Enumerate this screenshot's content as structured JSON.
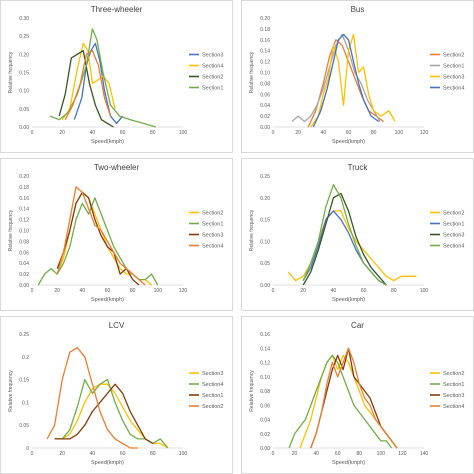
{
  "chart_data": [
    {
      "type": "line",
      "title": "Three-wheeler",
      "xlabel": "Speed(kmph)",
      "ylabel": "Relative frequency",
      "xlim": [
        0,
        100
      ],
      "xticks": [
        0,
        20,
        40,
        60,
        80,
        100
      ],
      "ylim": [
        0,
        0.3
      ],
      "yticks": [
        0,
        0.05,
        0.1,
        0.15,
        0.2,
        0.25,
        0.3
      ],
      "ytick_labels": [
        "0.00",
        "0.05",
        "0.10",
        "0.15",
        "0.20",
        "0.25",
        "0.30"
      ],
      "legend": "right",
      "series": [
        {
          "name": "Section3",
          "color": "#4472c4",
          "x": [
            28,
            33,
            36,
            39,
            42,
            45,
            48,
            52,
            56,
            60
          ],
          "y": [
            0.02,
            0.08,
            0.17,
            0.21,
            0.23,
            0.18,
            0.1,
            0.03,
            0.01,
            0.03
          ]
        },
        {
          "name": "Section4",
          "color": "#ffc000",
          "x": [
            20,
            25,
            30,
            34,
            37,
            40,
            44,
            47,
            51,
            55
          ],
          "y": [
            0.02,
            0.05,
            0.16,
            0.23,
            0.21,
            0.12,
            0.13,
            0.14,
            0.12,
            0.05
          ]
        },
        {
          "name": "Section2",
          "color": "#375623",
          "x": [
            18,
            22,
            26,
            30,
            34,
            38,
            42,
            46,
            50,
            54
          ],
          "y": [
            0.03,
            0.09,
            0.19,
            0.2,
            0.21,
            0.12,
            0.06,
            0.02,
            0.01,
            0.0
          ]
        },
        {
          "name": "Section1",
          "color": "#70ad47",
          "x": [
            12,
            18,
            24,
            30,
            36,
            40,
            43,
            47,
            52,
            58,
            65,
            74,
            82
          ],
          "y": [
            0.03,
            0.02,
            0.04,
            0.09,
            0.17,
            0.27,
            0.24,
            0.15,
            0.06,
            0.03,
            0.02,
            0.01,
            0.0
          ]
        },
        {
          "name": "",
          "color": "#ed7d31",
          "x": [
            22,
            27,
            32,
            36,
            40,
            44,
            48,
            52
          ],
          "y": [
            0.02,
            0.06,
            0.12,
            0.2,
            0.21,
            0.17,
            0.08,
            0.03
          ]
        }
      ]
    },
    {
      "type": "line",
      "title": "Bus",
      "xlabel": "Speed(kmph)",
      "ylabel": "Relative frequency",
      "xlim": [
        0,
        120
      ],
      "xticks": [
        0,
        20,
        40,
        60,
        80,
        100,
        120
      ],
      "ylim": [
        0,
        0.2
      ],
      "yticks": [
        0,
        0.02,
        0.04,
        0.06,
        0.08,
        0.1,
        0.12,
        0.14,
        0.16,
        0.18,
        0.2
      ],
      "ytick_labels": [
        "0.00",
        "0.02",
        "0.04",
        "0.06",
        "0.08",
        "0.10",
        "0.12",
        "0.14",
        "0.16",
        "0.18",
        "0.20"
      ],
      "legend": "right",
      "series": [
        {
          "name": "Section2",
          "color": "#ed7d31",
          "x": [
            28,
            34,
            40,
            45,
            50,
            55,
            60,
            65,
            70,
            76,
            82,
            88
          ],
          "y": [
            0.0,
            0.03,
            0.08,
            0.13,
            0.16,
            0.15,
            0.12,
            0.09,
            0.06,
            0.03,
            0.02,
            0.01
          ]
        },
        {
          "name": "Section1",
          "color": "#a5a5a5",
          "x": [
            15,
            20,
            25,
            30,
            35,
            40,
            45,
            50,
            55,
            60,
            65,
            70,
            75,
            80,
            85
          ],
          "y": [
            0.01,
            0.02,
            0.01,
            0.02,
            0.04,
            0.07,
            0.11,
            0.15,
            0.17,
            0.14,
            0.1,
            0.08,
            0.05,
            0.03,
            0.01
          ]
        },
        {
          "name": "Section3",
          "color": "#ffc000",
          "x": [
            30,
            36,
            40,
            44,
            48,
            52,
            56,
            60,
            64,
            68,
            72,
            76,
            80,
            86,
            92,
            97
          ],
          "y": [
            0.0,
            0.02,
            0.06,
            0.09,
            0.15,
            0.12,
            0.04,
            0.14,
            0.17,
            0.1,
            0.11,
            0.06,
            0.03,
            0.02,
            0.03,
            0.01
          ]
        },
        {
          "name": "Section4",
          "color": "#4472c4",
          "x": [
            32,
            38,
            43,
            48,
            52,
            56,
            60,
            64,
            68,
            72,
            78,
            84
          ],
          "y": [
            0.0,
            0.03,
            0.07,
            0.12,
            0.16,
            0.17,
            0.16,
            0.12,
            0.08,
            0.05,
            0.02,
            0.01
          ]
        }
      ]
    },
    {
      "type": "line",
      "title": "Two-wheeler",
      "xlabel": "Speed(kmph)",
      "ylabel": "Relative frequency",
      "xlim": [
        0,
        120
      ],
      "xticks": [
        0,
        20,
        40,
        60,
        80,
        100,
        120
      ],
      "ylim": [
        0,
        0.2
      ],
      "yticks": [
        0,
        0.02,
        0.04,
        0.06,
        0.08,
        0.1,
        0.12,
        0.14,
        0.16,
        0.18,
        0.2
      ],
      "ytick_labels": [
        "0.00",
        "0.02",
        "0.04",
        "0.06",
        "0.08",
        "0.10",
        "0.12",
        "0.14",
        "0.16",
        "0.18",
        "0.20"
      ],
      "legend": "right",
      "series": [
        {
          "name": "Section2",
          "color": "#ffc000",
          "x": [
            20,
            25,
            30,
            35,
            40,
            45,
            50,
            55,
            60,
            65,
            70,
            75,
            80,
            85,
            90,
            95
          ],
          "y": [
            0.02,
            0.05,
            0.1,
            0.15,
            0.17,
            0.16,
            0.13,
            0.1,
            0.07,
            0.05,
            0.03,
            0.02,
            0.02,
            0.01,
            0.01,
            0.0
          ]
        },
        {
          "name": "Section1",
          "color": "#70ad47",
          "x": [
            5,
            10,
            15,
            20,
            25,
            30,
            35,
            40,
            45,
            50,
            55,
            60,
            65,
            70,
            75,
            80,
            85,
            90,
            95,
            100
          ],
          "y": [
            0.0,
            0.02,
            0.03,
            0.02,
            0.04,
            0.07,
            0.12,
            0.15,
            0.13,
            0.16,
            0.13,
            0.1,
            0.07,
            0.05,
            0.03,
            0.02,
            0.01,
            0.01,
            0.02,
            0.0
          ]
        },
        {
          "name": "Section3",
          "color": "#843c0c",
          "x": [
            20,
            25,
            30,
            35,
            40,
            45,
            50,
            55,
            60,
            65,
            70,
            75,
            80,
            85
          ],
          "y": [
            0.03,
            0.06,
            0.1,
            0.15,
            0.17,
            0.16,
            0.12,
            0.09,
            0.07,
            0.06,
            0.02,
            0.03,
            0.01,
            0.0
          ]
        },
        {
          "name": "Section4",
          "color": "#ed7d31",
          "x": [
            20,
            25,
            30,
            35,
            40,
            45,
            50,
            55,
            60,
            65,
            70,
            75,
            80,
            85,
            90
          ],
          "y": [
            0.02,
            0.06,
            0.12,
            0.18,
            0.17,
            0.14,
            0.11,
            0.1,
            0.08,
            0.06,
            0.04,
            0.03,
            0.02,
            0.01,
            0.0
          ]
        }
      ]
    },
    {
      "type": "line",
      "title": "Truck",
      "xlabel": "Speed(kmph)",
      "ylabel": "Relative frequency",
      "xlim": [
        0,
        100
      ],
      "xticks": [
        0,
        20,
        40,
        60,
        80,
        100
      ],
      "ylim": [
        0,
        0.25
      ],
      "yticks": [
        0,
        0.05,
        0.1,
        0.15,
        0.2,
        0.25
      ],
      "ytick_labels": [
        "0.00",
        "0.05",
        "0.10",
        "0.15",
        "0.20",
        "0.25"
      ],
      "legend": "right",
      "series": [
        {
          "name": "Section2",
          "color": "#ffc000",
          "x": [
            10,
            15,
            20,
            25,
            30,
            35,
            40,
            45,
            50,
            55,
            60,
            65,
            70,
            75,
            80,
            85,
            90,
            95
          ],
          "y": [
            0.03,
            0.01,
            0.02,
            0.05,
            0.1,
            0.15,
            0.17,
            0.17,
            0.13,
            0.1,
            0.08,
            0.06,
            0.04,
            0.02,
            0.01,
            0.02,
            0.02,
            0.02
          ]
        },
        {
          "name": "Section1",
          "color": "#4472c4",
          "x": [
            20,
            25,
            30,
            35,
            40,
            45,
            50,
            55,
            60,
            65,
            70,
            75
          ],
          "y": [
            0.01,
            0.04,
            0.09,
            0.15,
            0.17,
            0.15,
            0.12,
            0.08,
            0.05,
            0.03,
            0.01,
            0.0
          ]
        },
        {
          "name": "Section3",
          "color": "#375623",
          "x": [
            20,
            25,
            30,
            35,
            40,
            45,
            50,
            55,
            60,
            65,
            70,
            75
          ],
          "y": [
            0.0,
            0.03,
            0.08,
            0.14,
            0.2,
            0.21,
            0.17,
            0.11,
            0.07,
            0.04,
            0.02,
            0.0
          ]
        },
        {
          "name": "Section4",
          "color": "#70ad47",
          "x": [
            20,
            25,
            30,
            35,
            40,
            45,
            50,
            55,
            60,
            65,
            70,
            75
          ],
          "y": [
            0.01,
            0.05,
            0.1,
            0.18,
            0.23,
            0.2,
            0.14,
            0.09,
            0.05,
            0.03,
            0.01,
            0.0
          ]
        }
      ]
    },
    {
      "type": "line",
      "title": "LCV",
      "xlabel": "Speed(kmph)",
      "ylabel": "Relative frequency",
      "xlim": [
        0,
        100
      ],
      "xticks": [
        0,
        20,
        40,
        60,
        80,
        100
      ],
      "ylim": [
        0,
        0.25
      ],
      "yticks": [
        0,
        0.05,
        0.1,
        0.15,
        0.2,
        0.25
      ],
      "ytick_labels": [
        "0",
        "0.05",
        "0.1",
        "0.15",
        "0.2",
        "0.25"
      ],
      "legend": "right",
      "series": [
        {
          "name": "Section3",
          "color": "#ffc000",
          "x": [
            15,
            20,
            25,
            30,
            35,
            40,
            45,
            50,
            55,
            60,
            65,
            70,
            75,
            80,
            85,
            90
          ],
          "y": [
            0.02,
            0.02,
            0.03,
            0.06,
            0.1,
            0.13,
            0.14,
            0.14,
            0.12,
            0.09,
            0.06,
            0.04,
            0.02,
            0.01,
            0.01,
            0.0
          ]
        },
        {
          "name": "Section4",
          "color": "#70ad47",
          "x": [
            15,
            20,
            25,
            30,
            35,
            40,
            45,
            50,
            55,
            60,
            65,
            70,
            75,
            80,
            85,
            90
          ],
          "y": [
            0.02,
            0.02,
            0.04,
            0.09,
            0.15,
            0.12,
            0.14,
            0.15,
            0.1,
            0.06,
            0.03,
            0.02,
            0.02,
            0.01,
            0.02,
            0.0
          ]
        },
        {
          "name": "Section1",
          "color": "#843c0c",
          "x": [
            15,
            20,
            25,
            30,
            35,
            40,
            45,
            50,
            55,
            60,
            65,
            70,
            75,
            80
          ],
          "y": [
            0.02,
            0.02,
            0.02,
            0.03,
            0.05,
            0.08,
            0.1,
            0.12,
            0.14,
            0.12,
            0.08,
            0.05,
            0.02,
            0.01
          ]
        },
        {
          "name": "Section2",
          "color": "#ed7d31",
          "x": [
            10,
            15,
            20,
            25,
            30,
            35,
            40,
            45,
            50,
            55,
            60,
            65,
            70
          ],
          "y": [
            0.02,
            0.05,
            0.15,
            0.21,
            0.22,
            0.2,
            0.14,
            0.08,
            0.04,
            0.02,
            0.01,
            0.0,
            0.0
          ]
        }
      ]
    },
    {
      "type": "line",
      "title": "Car",
      "xlabel": "Speed(kmph)",
      "ylabel": "Relative frequency",
      "xlim": [
        0,
        140
      ],
      "xticks": [
        0,
        20,
        40,
        60,
        80,
        100,
        120,
        140
      ],
      "ylim": [
        0,
        0.16
      ],
      "yticks": [
        0,
        0.02,
        0.04,
        0.06,
        0.08,
        0.1,
        0.12,
        0.14,
        0.16
      ],
      "ytick_labels": [
        "0.00",
        "0.02",
        "0.04",
        "0.06",
        "0.08",
        "0.10",
        "0.12",
        "0.14",
        "0.16"
      ],
      "legend": "right",
      "series": [
        {
          "name": "Section2",
          "color": "#ffc000",
          "x": [
            25,
            30,
            35,
            40,
            45,
            50,
            55,
            60,
            65,
            70,
            75,
            80,
            85,
            90,
            95,
            100,
            105,
            110,
            115
          ],
          "y": [
            0.0,
            0.02,
            0.04,
            0.07,
            0.1,
            0.12,
            0.13,
            0.11,
            0.13,
            0.12,
            0.1,
            0.08,
            0.06,
            0.05,
            0.04,
            0.03,
            0.02,
            0.01,
            0.0
          ]
        },
        {
          "name": "Section1",
          "color": "#70ad47",
          "x": [
            15,
            20,
            25,
            30,
            35,
            40,
            45,
            50,
            55,
            60,
            65,
            70,
            75,
            80,
            85,
            90,
            95,
            100,
            105,
            110
          ],
          "y": [
            0.0,
            0.02,
            0.03,
            0.04,
            0.06,
            0.08,
            0.1,
            0.12,
            0.13,
            0.12,
            0.1,
            0.08,
            0.06,
            0.05,
            0.04,
            0.03,
            0.02,
            0.01,
            0.01,
            0.0
          ]
        },
        {
          "name": "Section3",
          "color": "#843c0c",
          "x": [
            35,
            40,
            45,
            50,
            55,
            60,
            65,
            70,
            75,
            80,
            85,
            90,
            95,
            100,
            105,
            110,
            115
          ],
          "y": [
            0.0,
            0.02,
            0.05,
            0.08,
            0.11,
            0.13,
            0.11,
            0.14,
            0.1,
            0.09,
            0.08,
            0.07,
            0.05,
            0.03,
            0.02,
            0.01,
            0.0
          ]
        },
        {
          "name": "Section4",
          "color": "#ed7d31",
          "x": [
            35,
            40,
            45,
            50,
            55,
            60,
            65,
            70,
            75,
            80,
            85,
            90,
            95,
            100,
            105,
            110,
            115
          ],
          "y": [
            0.0,
            0.02,
            0.05,
            0.09,
            0.12,
            0.1,
            0.12,
            0.14,
            0.12,
            0.09,
            0.07,
            0.06,
            0.04,
            0.03,
            0.02,
            0.01,
            0.0
          ]
        }
      ]
    }
  ]
}
